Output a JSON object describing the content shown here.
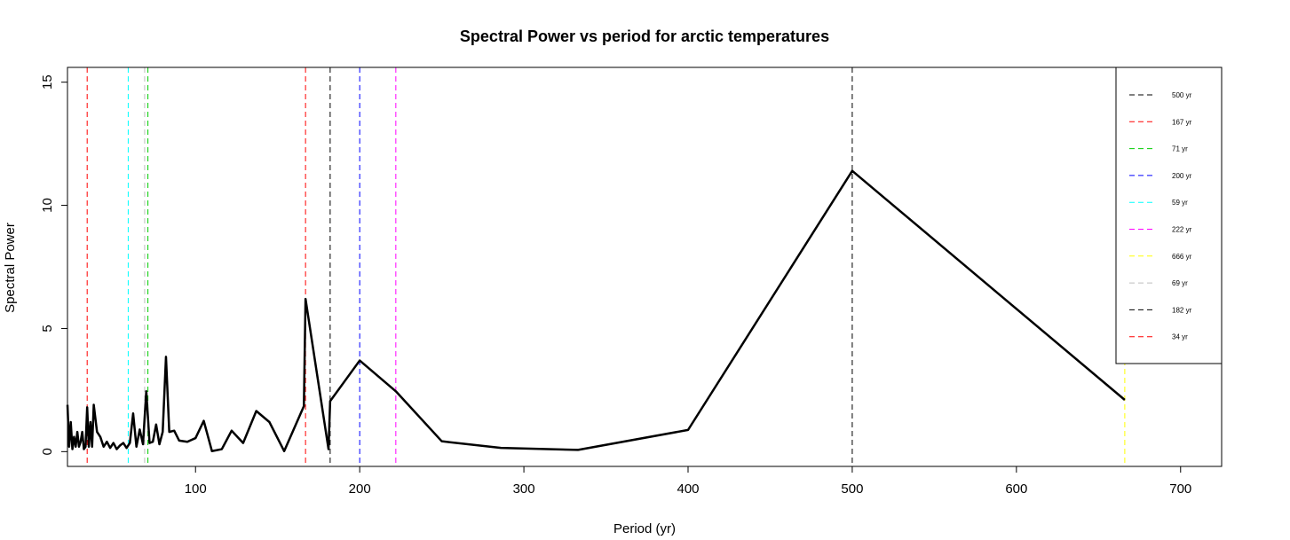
{
  "chart_data": {
    "type": "line",
    "title": "Spectral Power vs period for arctic temperatures",
    "xlabel": "Period (yr)",
    "ylabel": "Spectral Power",
    "xlim": [
      22,
      725
    ],
    "ylim": [
      -0.6,
      15.6
    ],
    "xticks": [
      100,
      200,
      300,
      400,
      500,
      600,
      700
    ],
    "yticks": [
      0,
      5,
      10,
      15
    ],
    "grid": false,
    "legend_position": "top-right",
    "series": [
      {
        "color": "#000000",
        "points": [
          [
            22,
            1.9
          ],
          [
            23,
            0.2
          ],
          [
            24,
            1.2
          ],
          [
            25,
            0.1
          ],
          [
            26,
            0.6
          ],
          [
            27,
            0.2
          ],
          [
            28,
            0.8
          ],
          [
            29,
            0.2
          ],
          [
            30,
            0.4
          ],
          [
            31,
            0.8
          ],
          [
            32,
            0.1
          ],
          [
            33,
            0.2
          ],
          [
            34,
            1.8
          ],
          [
            35,
            0.2
          ],
          [
            36,
            1.2
          ],
          [
            37,
            0.2
          ],
          [
            38,
            1.9
          ],
          [
            40,
            0.8
          ],
          [
            42,
            0.6
          ],
          [
            44,
            0.2
          ],
          [
            46,
            0.4
          ],
          [
            48,
            0.15
          ],
          [
            50,
            0.35
          ],
          [
            52,
            0.1
          ],
          [
            54,
            0.25
          ],
          [
            56,
            0.35
          ],
          [
            58,
            0.15
          ],
          [
            60,
            0.35
          ],
          [
            62,
            1.55
          ],
          [
            64,
            0.2
          ],
          [
            66,
            0.9
          ],
          [
            68,
            0.3
          ],
          [
            70,
            2.45
          ],
          [
            72,
            0.35
          ],
          [
            74,
            0.4
          ],
          [
            76,
            1.1
          ],
          [
            78,
            0.3
          ],
          [
            80,
            0.8
          ],
          [
            82,
            3.85
          ],
          [
            84,
            0.8
          ],
          [
            87,
            0.85
          ],
          [
            90,
            0.45
          ],
          [
            95,
            0.4
          ],
          [
            100,
            0.55
          ],
          [
            105,
            1.25
          ],
          [
            110,
            0.02
          ],
          [
            116,
            0.1
          ],
          [
            122,
            0.85
          ],
          [
            129,
            0.35
          ],
          [
            137,
            1.65
          ],
          [
            145,
            1.2
          ],
          [
            154,
            0.02
          ],
          [
            166,
            1.85
          ],
          [
            181,
            0.1
          ],
          [
            167,
            6.2
          ],
          [
            182,
            2.05
          ],
          [
            200,
            3.7
          ],
          [
            222,
            2.45
          ],
          [
            250,
            0.42
          ],
          [
            286,
            0.15
          ],
          [
            333,
            0.07
          ],
          [
            400,
            0.88
          ],
          [
            500,
            11.4
          ],
          [
            666,
            2.1
          ]
        ]
      }
    ],
    "vlines": [
      {
        "x": 500,
        "label": "500 yr",
        "color": "#000000"
      },
      {
        "x": 167,
        "label": "167 yr",
        "color": "#ff0000"
      },
      {
        "x": 71,
        "label": "71 yr",
        "color": "#00cd00"
      },
      {
        "x": 200,
        "label": "200 yr",
        "color": "#0000ff"
      },
      {
        "x": 59,
        "label": "59 yr",
        "color": "#00ffff"
      },
      {
        "x": 222,
        "label": "222 yr",
        "color": "#ff00ff"
      },
      {
        "x": 666,
        "label": "666 yr",
        "color": "#ffff00"
      },
      {
        "x": 69,
        "label": "69 yr",
        "color": "#bebebe"
      },
      {
        "x": 182,
        "label": "182 yr",
        "color": "#000000"
      },
      {
        "x": 34,
        "label": "34 yr",
        "color": "#ff0000"
      }
    ]
  }
}
